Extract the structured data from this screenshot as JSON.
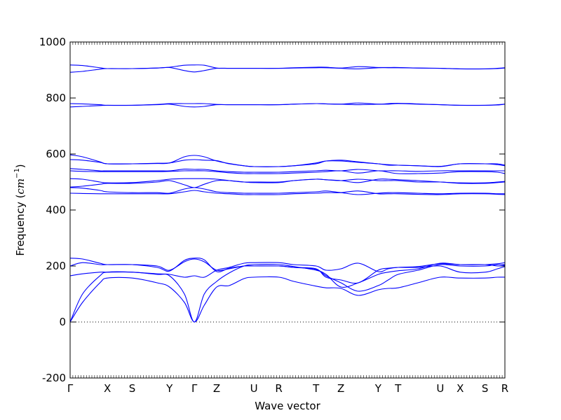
{
  "chart_data": {
    "type": "line",
    "title": "",
    "xlabel": "Wave vector",
    "ylabel": "Frequency ($cm^{-1}$)",
    "ylabel_main": "Frequency (",
    "ylabel_unit_base": "cm",
    "ylabel_unit_exp": "−1",
    "ylabel_close": ")",
    "ylim": [
      -200,
      1000
    ],
    "yticks": [
      -200,
      0,
      200,
      400,
      600,
      800,
      1000
    ],
    "xlim": [
      0,
      17.5
    ],
    "xticks": [
      {
        "x": 0,
        "label": "Γ"
      },
      {
        "x": 1.5,
        "label": "X"
      },
      {
        "x": 2.5,
        "label": "S"
      },
      {
        "x": 4.0,
        "label": "Y"
      },
      {
        "x": 5.0,
        "label": "Γ"
      },
      {
        "x": 5.9,
        "label": "Z"
      },
      {
        "x": 7.4,
        "label": "U"
      },
      {
        "x": 8.4,
        "label": "R"
      },
      {
        "x": 9.9,
        "label": "T"
      },
      {
        "x": 10.9,
        "label": "Z"
      },
      {
        "x": 12.4,
        "label": "Y"
      },
      {
        "x": 13.2,
        "label": "T"
      },
      {
        "x": 14.9,
        "label": "U"
      },
      {
        "x": 15.7,
        "label": "X"
      },
      {
        "x": 16.7,
        "label": "S"
      },
      {
        "x": 17.5,
        "label": "R"
      }
    ],
    "zero_line": true,
    "line_color": "#0000ff",
    "series": [
      {
        "x": [
          0,
          0.5,
          1.2,
          1.5,
          2.5,
          3.5,
          4.0,
          4.6,
          5.0,
          5.4,
          5.9,
          6.4,
          7.0,
          7.4,
          8.4,
          9.0,
          9.9,
          10.3,
          10.9,
          11.6,
          12.4,
          12.8,
          13.2,
          14.0,
          14.9,
          15.7,
          16.7,
          17.2,
          17.5
        ],
        "y": [
          0,
          70,
          140,
          157,
          157,
          140,
          125,
          70,
          0,
          60,
          125,
          130,
          155,
          160,
          160,
          145,
          128,
          122,
          120,
          95,
          115,
          120,
          122,
          140,
          160,
          157,
          157,
          160,
          160
        ]
      },
      {
        "x": [
          0,
          0.5,
          1.2,
          1.5,
          2.5,
          3.5,
          4.0,
          4.6,
          5.0,
          5.4,
          5.9,
          6.4,
          7.0,
          7.4,
          8.4,
          9.0,
          9.9,
          10.3,
          10.9,
          11.6,
          12.4,
          12.8,
          13.2,
          14.0,
          14.9,
          15.7,
          16.7,
          17.2,
          17.5
        ],
        "y": [
          0,
          100,
          165,
          178,
          178,
          170,
          165,
          100,
          0,
          100,
          145,
          175,
          200,
          205,
          205,
          198,
          185,
          170,
          125,
          140,
          170,
          178,
          183,
          190,
          210,
          205,
          205,
          208,
          212
        ]
      },
      {
        "x": [
          0,
          0.5,
          1.2,
          1.5,
          2.5,
          3.5,
          4.0,
          4.6,
          5.0,
          5.4,
          5.9,
          6.4,
          7.0,
          7.4,
          8.4,
          9.0,
          9.9,
          10.3,
          10.9,
          11.6,
          12.4,
          12.8,
          13.2,
          14.0,
          14.9,
          15.7,
          16.7,
          17.2,
          17.5
        ],
        "y": [
          165,
          172,
          178,
          178,
          178,
          172,
          170,
          160,
          165,
          160,
          185,
          195,
          210,
          212,
          212,
          205,
          200,
          185,
          190,
          210,
          180,
          190,
          195,
          198,
          208,
          205,
          205,
          200,
          203
        ]
      },
      {
        "x": [
          0,
          0.5,
          1.2,
          1.5,
          2.5,
          3.5,
          4.0,
          4.6,
          5.0,
          5.4,
          5.9,
          6.4,
          7.0,
          7.4,
          8.4,
          9.0,
          9.9,
          10.3,
          10.9,
          11.6,
          12.4,
          12.8,
          13.2,
          14.0,
          14.9,
          15.7,
          16.7,
          17.2,
          17.5
        ],
        "y": [
          200,
          212,
          205,
          205,
          205,
          200,
          185,
          215,
          225,
          215,
          185,
          190,
          200,
          200,
          200,
          195,
          190,
          160,
          150,
          140,
          185,
          192,
          195,
          195,
          200,
          178,
          178,
          190,
          198
        ]
      },
      {
        "x": [
          0,
          0.5,
          1.2,
          1.5,
          2.5,
          3.5,
          4.0,
          4.6,
          5.0,
          5.4,
          5.9,
          6.4,
          7.0,
          7.4,
          8.4,
          9.0,
          9.9,
          10.3,
          10.9,
          11.6,
          12.4,
          12.8,
          13.2,
          14.0,
          14.9,
          15.7,
          16.7,
          17.2,
          17.5
        ],
        "y": [
          228,
          225,
          210,
          205,
          205,
          195,
          182,
          220,
          228,
          222,
          180,
          192,
          200,
          200,
          200,
          195,
          188,
          165,
          140,
          110,
          130,
          150,
          170,
          185,
          205,
          200,
          200,
          205,
          205
        ]
      },
      {
        "x": [
          0,
          0.5,
          1.2,
          1.5,
          2.5,
          3.5,
          4.0,
          4.6,
          5.0,
          5.4,
          5.9,
          6.4,
          7.0,
          7.4,
          8.4,
          9.0,
          9.9,
          10.3,
          10.9,
          11.6,
          12.4,
          12.8,
          13.2,
          14.0,
          14.9,
          15.7,
          16.7,
          17.2,
          17.5
        ],
        "y": [
          460,
          459,
          458,
          458,
          458,
          458,
          458,
          465,
          470,
          465,
          460,
          458,
          455,
          455,
          455,
          458,
          460,
          462,
          462,
          468,
          458,
          458,
          458,
          456,
          455,
          458,
          458,
          456,
          455
        ]
      },
      {
        "x": [
          0,
          0.5,
          1.2,
          1.5,
          2.5,
          3.5,
          4.0,
          4.6,
          5.0,
          5.4,
          5.9,
          6.4,
          7.0,
          7.4,
          8.4,
          9.0,
          9.9,
          10.3,
          10.9,
          11.6,
          12.4,
          12.8,
          13.2,
          14.0,
          14.9,
          15.7,
          16.7,
          17.2,
          17.5
        ],
        "y": [
          480,
          478,
          470,
          465,
          462,
          462,
          460,
          475,
          480,
          475,
          465,
          462,
          460,
          460,
          460,
          462,
          465,
          468,
          462,
          455,
          460,
          462,
          462,
          460,
          458,
          460,
          460,
          458,
          458
        ]
      },
      {
        "x": [
          0,
          0.5,
          1.2,
          1.5,
          2.5,
          3.5,
          4.0,
          4.6,
          5.0,
          5.4,
          5.9,
          6.4,
          7.0,
          7.4,
          8.4,
          9.0,
          9.9,
          10.3,
          10.9,
          11.6,
          12.4,
          12.8,
          13.2,
          14.0,
          14.9,
          15.7,
          16.7,
          17.2,
          17.5
        ],
        "y": [
          482,
          485,
          492,
          495,
          495,
          500,
          505,
          490,
          480,
          492,
          505,
          505,
          500,
          498,
          498,
          505,
          510,
          508,
          505,
          510,
          505,
          505,
          505,
          500,
          500,
          495,
          495,
          498,
          500
        ]
      },
      {
        "x": [
          0,
          0.5,
          1.2,
          1.5,
          2.5,
          3.5,
          4.0,
          4.6,
          5.0,
          5.4,
          5.9,
          6.4,
          7.0,
          7.4,
          8.4,
          9.0,
          9.9,
          10.3,
          10.9,
          11.6,
          12.4,
          12.8,
          13.2,
          14.0,
          14.9,
          15.7,
          16.7,
          17.2,
          17.5
        ],
        "y": [
          512,
          510,
          500,
          497,
          498,
          505,
          510,
          512,
          512,
          512,
          510,
          505,
          500,
          500,
          500,
          505,
          510,
          508,
          505,
          498,
          510,
          510,
          508,
          505,
          500,
          497,
          497,
          500,
          502
        ]
      },
      {
        "x": [
          0,
          0.5,
          1.2,
          1.5,
          2.5,
          3.5,
          4.0,
          4.6,
          5.0,
          5.4,
          5.9,
          6.4,
          7.0,
          7.4,
          8.4,
          9.0,
          9.9,
          10.3,
          10.9,
          11.6,
          12.4,
          12.8,
          13.2,
          14.0,
          14.9,
          15.7,
          16.7,
          17.2,
          17.5
        ],
        "y": [
          540,
          538,
          537,
          537,
          537,
          537,
          538,
          540,
          540,
          540,
          537,
          533,
          530,
          530,
          530,
          532,
          535,
          537,
          540,
          532,
          540,
          535,
          530,
          530,
          532,
          537,
          537,
          535,
          530
        ]
      },
      {
        "x": [
          0,
          0.5,
          1.2,
          1.5,
          2.5,
          3.5,
          4.0,
          4.6,
          5.0,
          5.4,
          5.9,
          6.4,
          7.0,
          7.4,
          8.4,
          9.0,
          9.9,
          10.3,
          10.9,
          11.6,
          12.4,
          12.8,
          13.2,
          14.0,
          14.9,
          15.7,
          16.7,
          17.2,
          17.5
        ],
        "y": [
          548,
          545,
          540,
          540,
          540,
          540,
          540,
          546,
          545,
          545,
          540,
          537,
          535,
          535,
          535,
          537,
          540,
          542,
          540,
          545,
          540,
          540,
          540,
          538,
          540,
          540,
          540,
          540,
          540
        ]
      },
      {
        "x": [
          0,
          0.5,
          1.2,
          1.5,
          2.5,
          3.5,
          4.0,
          4.6,
          5.0,
          5.4,
          5.9,
          6.4,
          7.0,
          7.4,
          8.4,
          9.0,
          9.9,
          10.3,
          10.9,
          11.6,
          12.4,
          12.8,
          13.2,
          14.0,
          14.9,
          15.7,
          16.7,
          17.2,
          17.5
        ],
        "y": [
          580,
          578,
          570,
          565,
          565,
          567,
          568,
          578,
          580,
          578,
          576,
          565,
          558,
          555,
          555,
          558,
          568,
          575,
          575,
          570,
          565,
          560,
          560,
          558,
          555,
          565,
          565,
          562,
          558
        ]
      },
      {
        "x": [
          0,
          0.5,
          1.2,
          1.5,
          2.5,
          3.5,
          4.0,
          4.6,
          5.0,
          5.4,
          5.9,
          6.4,
          7.0,
          7.4,
          8.4,
          9.0,
          9.9,
          10.3,
          10.9,
          11.6,
          12.4,
          12.8,
          13.2,
          14.0,
          14.9,
          15.7,
          16.7,
          17.2,
          17.5
        ],
        "y": [
          597,
          590,
          572,
          565,
          565,
          566,
          568,
          590,
          595,
          590,
          575,
          566,
          558,
          555,
          555,
          558,
          565,
          575,
          578,
          572,
          565,
          562,
          560,
          558,
          556,
          565,
          565,
          565,
          560
        ]
      },
      {
        "x": [
          0,
          0.5,
          1.2,
          1.5,
          2.5,
          3.5,
          4.0,
          4.6,
          5.0,
          5.4,
          5.9,
          6.4,
          7.0,
          7.4,
          8.4,
          9.0,
          9.9,
          10.3,
          10.9,
          11.6,
          12.4,
          12.8,
          13.2,
          14.0,
          14.9,
          15.7,
          16.7,
          17.2,
          17.5
        ],
        "y": [
          768,
          770,
          773,
          774,
          774,
          776,
          778,
          770,
          768,
          770,
          776,
          776,
          776,
          776,
          776,
          778,
          780,
          779,
          778,
          776,
          778,
          778,
          780,
          778,
          776,
          774,
          774,
          775,
          778
        ]
      },
      {
        "x": [
          0,
          0.5,
          1.2,
          1.5,
          2.5,
          3.5,
          4.0,
          4.6,
          5.0,
          5.4,
          5.9,
          6.4,
          7.0,
          7.4,
          8.4,
          9.0,
          9.9,
          10.3,
          10.9,
          11.6,
          12.4,
          12.8,
          13.2,
          14.0,
          14.9,
          15.7,
          16.7,
          17.2,
          17.5
        ],
        "y": [
          780,
          779,
          776,
          774,
          774,
          777,
          780,
          780,
          780,
          780,
          777,
          776,
          776,
          776,
          776,
          778,
          780,
          779,
          778,
          782,
          778,
          780,
          781,
          779,
          776,
          774,
          774,
          776,
          778
        ]
      },
      {
        "x": [
          0,
          0.5,
          1.2,
          1.5,
          2.5,
          3.5,
          4.0,
          4.6,
          5.0,
          5.4,
          5.9,
          6.4,
          7.0,
          7.4,
          8.4,
          9.0,
          9.9,
          10.3,
          10.9,
          11.6,
          12.4,
          12.8,
          13.2,
          14.0,
          14.9,
          15.7,
          16.7,
          17.2,
          17.5
        ],
        "y": [
          892,
          895,
          903,
          905,
          905,
          907,
          909,
          898,
          893,
          898,
          906,
          906,
          906,
          906,
          906,
          907,
          908,
          908,
          906,
          904,
          908,
          908,
          908,
          907,
          906,
          904,
          904,
          905,
          907
        ]
      },
      {
        "x": [
          0,
          0.5,
          1.2,
          1.5,
          2.5,
          3.5,
          4.0,
          4.6,
          5.0,
          5.4,
          5.9,
          6.4,
          7.0,
          7.4,
          8.4,
          9.0,
          9.9,
          10.3,
          10.9,
          11.6,
          12.4,
          12.8,
          13.2,
          14.0,
          14.9,
          15.7,
          16.7,
          17.2,
          17.5
        ],
        "y": [
          918,
          916,
          908,
          905,
          905,
          907,
          910,
          917,
          918,
          917,
          907,
          906,
          906,
          906,
          906,
          908,
          910,
          910,
          907,
          912,
          909,
          909,
          909,
          907,
          906,
          904,
          904,
          906,
          908
        ]
      }
    ]
  }
}
